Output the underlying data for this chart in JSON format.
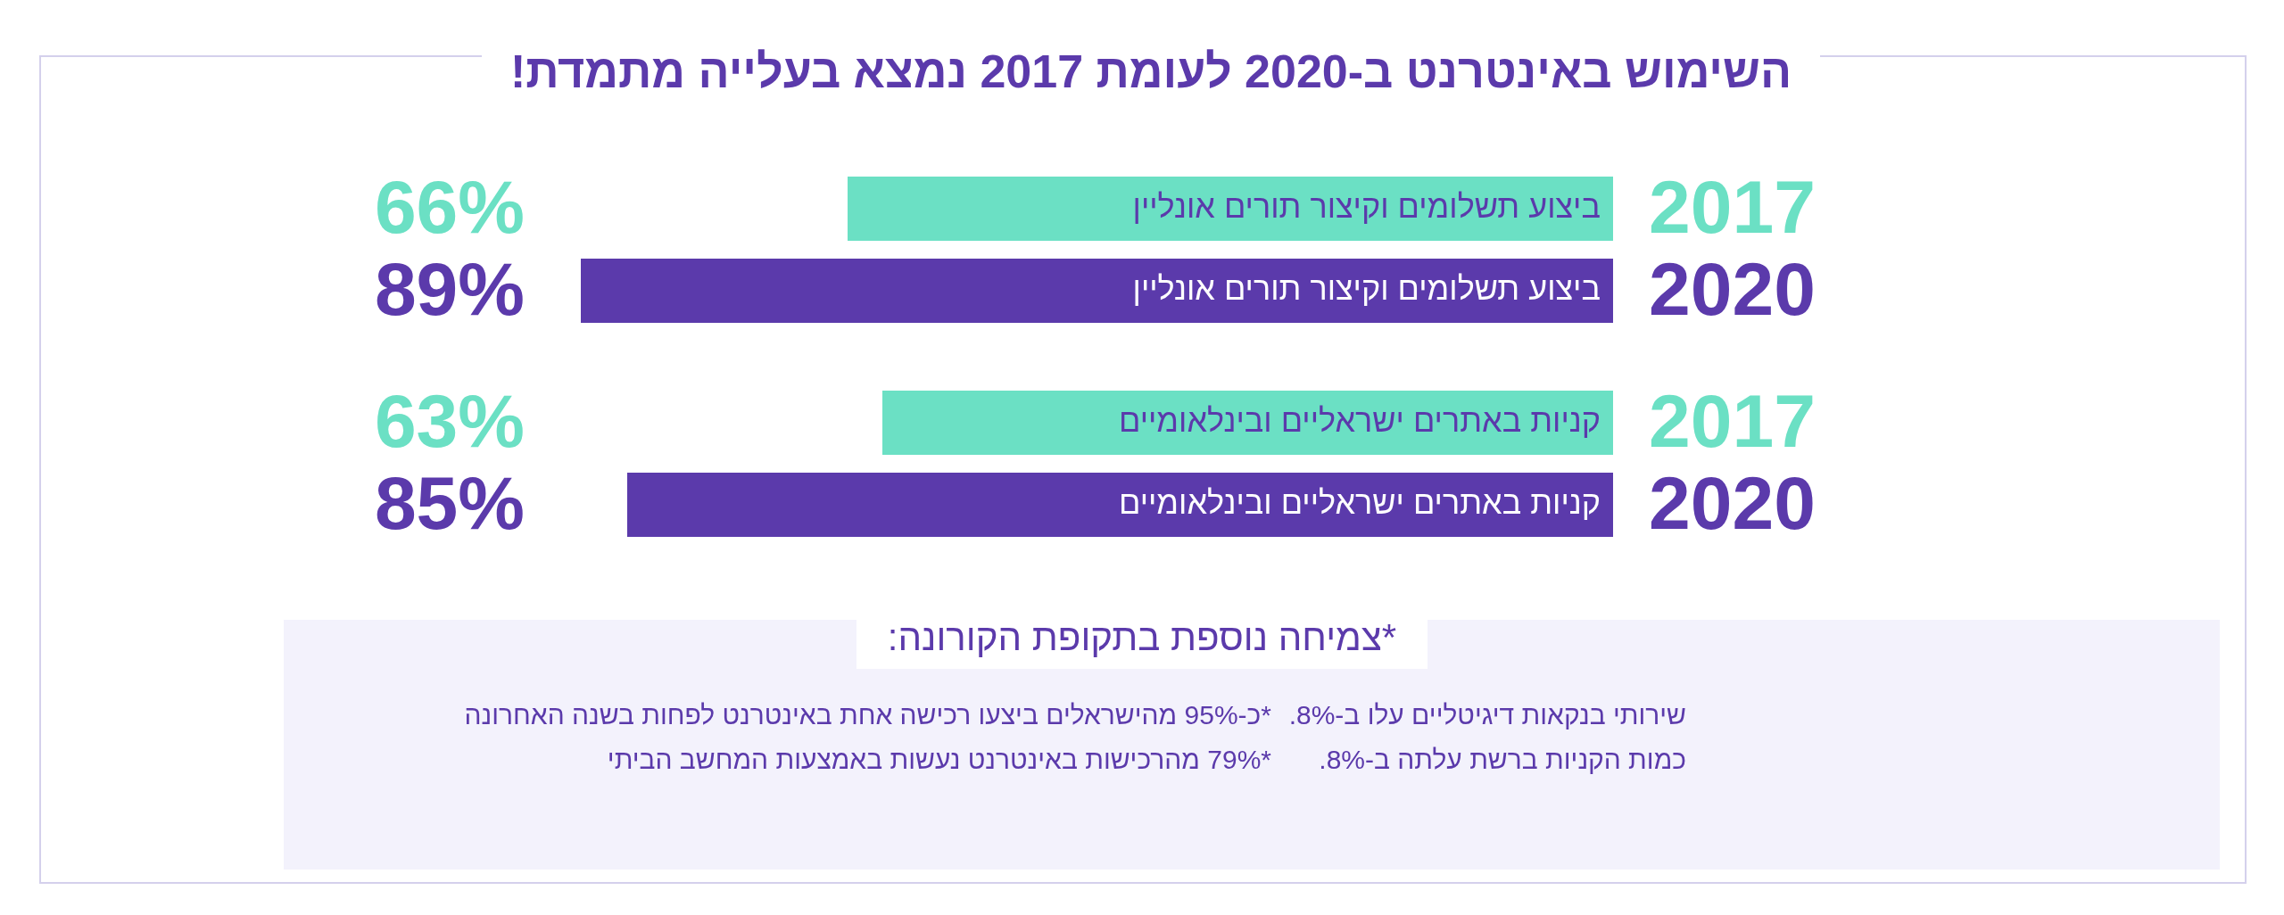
{
  "chart_data": {
    "type": "bar",
    "orientation": "horizontal",
    "title": "השימוש באינטרנט ב-2020 לעומת 2017 נמצא בעלייה מתמדת!",
    "subtitle": "*צמיחה נוספת בתקופת הקורונה:",
    "categories": [
      "ביצוע תשלומים וקיצור תורים אונליין",
      "קניות באתרים ישראליים ובינלאומיים"
    ],
    "series": [
      {
        "name": "2017",
        "color": "#6be0c4",
        "values": [
          66,
          63
        ],
        "value_labels": [
          "66%",
          "63%"
        ]
      },
      {
        "name": "2020",
        "color": "#5b3aab",
        "values": [
          89,
          85
        ],
        "value_labels": [
          "89%",
          "85%"
        ]
      }
    ],
    "tick_labels": false,
    "annotations": [
      "שירותי בנקאות דיגיטליים עלו ב-8%.",
      "*כ-95% מהישראלים ביצעו רכישה אחת באינטרנט לפחות בשנה האחרונה",
      "כמות הקניות ברשת עלתה ב-8%.",
      "*79% מהרכישות באינטרנט נעשות באמצעות המחשב הביתי"
    ]
  }
}
